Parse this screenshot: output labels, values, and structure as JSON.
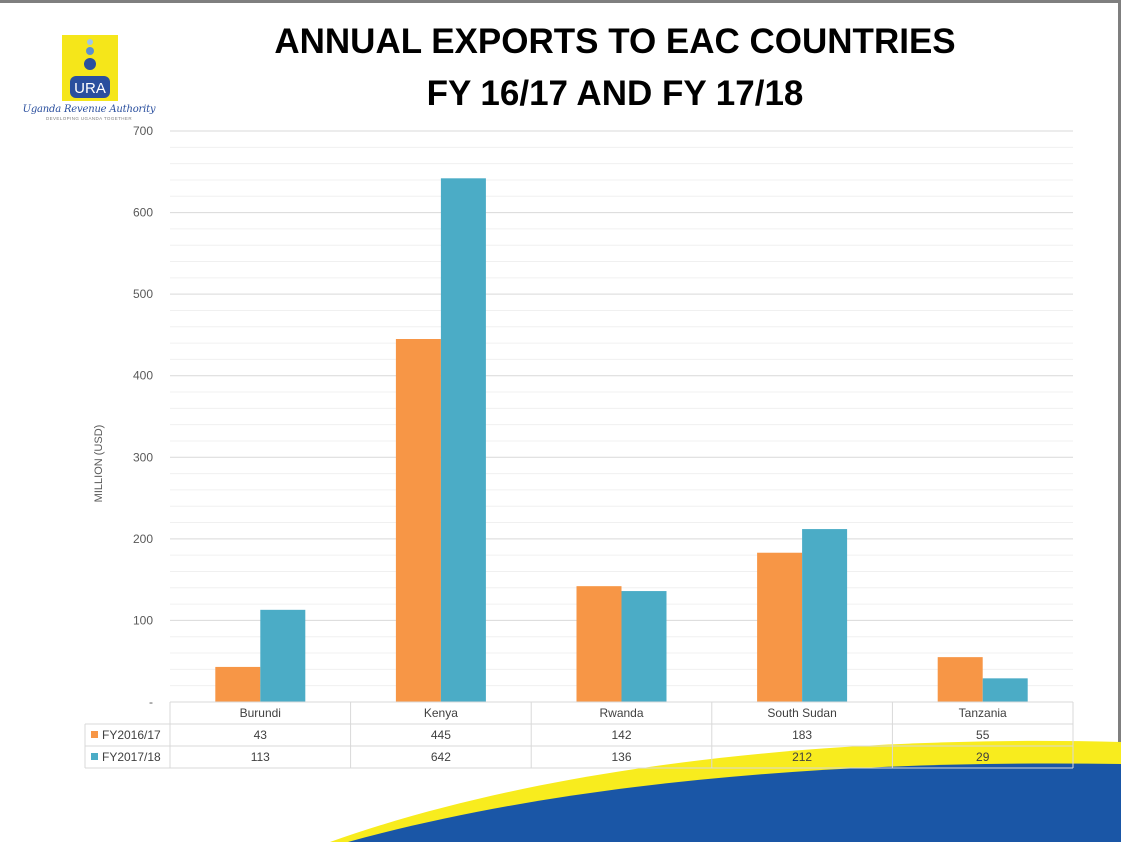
{
  "header": {
    "title_line1": "ANNUAL EXPORTS TO EAC COUNTRIES",
    "title_line2": "FY 16/17 AND FY 17/18"
  },
  "logo": {
    "abbreviation": "URA",
    "name": "Uganda Revenue Authority",
    "tagline": "DEVELOPING UGANDA TOGETHER"
  },
  "chart_data": {
    "type": "bar",
    "title": "ANNUAL EXPORTS TO EAC COUNTRIES FY 16/17 AND FY 17/18",
    "xlabel": "",
    "ylabel": "MILLION (USD)",
    "ylim": [
      0,
      700
    ],
    "yticks": [
      "-",
      "100",
      "200",
      "300",
      "400",
      "500",
      "600",
      "700"
    ],
    "grid": true,
    "categories": [
      "Burundi",
      "Kenya",
      "Rwanda",
      "South Sudan",
      "Tanzania"
    ],
    "series": [
      {
        "name": "FY2016/17",
        "values": [
          43,
          445,
          142,
          183,
          55
        ],
        "color": "#f79646"
      },
      {
        "name": "FY2017/18",
        "values": [
          113,
          642,
          136,
          212,
          29
        ],
        "color": "#4bacc6"
      }
    ],
    "data_table": true
  },
  "colors": {
    "swoosh_yellow": "#f8ec1e",
    "swoosh_blue": "#1a56a6",
    "grid": "#d9d9d9",
    "axis_text": "#595959"
  }
}
